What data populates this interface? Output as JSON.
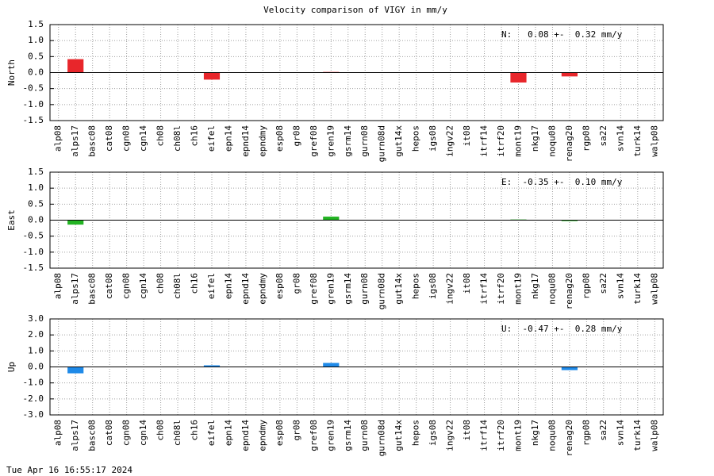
{
  "title": "Velocity comparison of VIGY in mm/y",
  "timestamp": "Tue Apr 16 16:55:17 2024",
  "chart_data": [
    {
      "type": "bar",
      "ylabel": "North",
      "annotation": "N:   0.08 +-  0.32 mm/y",
      "color": "#e8262b",
      "grid": true,
      "categories": [
        "alp08",
        "alps17",
        "basc08",
        "cat08",
        "cgn08",
        "cgn14",
        "ch08",
        "ch08l",
        "ch16",
        "eifel",
        "epn14",
        "epnd14",
        "epndmy",
        "esp08",
        "gr08",
        "gref08",
        "gren19",
        "gsrm14",
        "gurn08",
        "gurn08d",
        "gut14x",
        "hepos",
        "igs08",
        "ingv22",
        "it08",
        "itrf14",
        "itrf20",
        "mont19",
        "nkg17",
        "noqu08",
        "renag20",
        "rgp08",
        "sa22",
        "svn14",
        "turk14",
        "walp08"
      ],
      "values": [
        null,
        0.42,
        null,
        null,
        null,
        null,
        null,
        null,
        null,
        -0.22,
        null,
        null,
        null,
        null,
        null,
        null,
        0.02,
        null,
        null,
        null,
        null,
        null,
        null,
        null,
        null,
        null,
        null,
        -0.31,
        null,
        null,
        -0.12,
        null,
        null,
        null,
        null,
        null
      ],
      "ylim": [
        -1.5,
        1.5
      ],
      "yticks": [
        {
          "value": 1.5,
          "label": "1.5"
        },
        {
          "value": 1,
          "label": "1.0"
        },
        {
          "value": 0.5,
          "label": "0.5"
        },
        {
          "value": 0,
          "label": "0.0"
        },
        {
          "value": -0.5,
          "label": "-0.5"
        },
        {
          "value": -1,
          "label": "-1.0"
        },
        {
          "value": -1.5,
          "label": "-1.5"
        }
      ]
    },
    {
      "type": "bar",
      "ylabel": "East",
      "annotation": "E:  -0.35 +-  0.10 mm/y",
      "color": "#22b322",
      "grid": true,
      "categories": [
        "alp08",
        "alps17",
        "basc08",
        "cat08",
        "cgn08",
        "cgn14",
        "ch08",
        "ch08l",
        "ch16",
        "eifel",
        "epn14",
        "epnd14",
        "epndmy",
        "esp08",
        "gr08",
        "gref08",
        "gren19",
        "gsrm14",
        "gurn08",
        "gurn08d",
        "gut14x",
        "hepos",
        "igs08",
        "ingv22",
        "it08",
        "itrf14",
        "itrf20",
        "mont19",
        "nkg17",
        "noqu08",
        "renag20",
        "rgp08",
        "sa22",
        "svn14",
        "turk14",
        "walp08"
      ],
      "values": [
        null,
        -0.14,
        null,
        null,
        null,
        null,
        null,
        null,
        null,
        null,
        null,
        null,
        null,
        null,
        null,
        null,
        0.11,
        null,
        null,
        null,
        null,
        null,
        null,
        null,
        null,
        null,
        null,
        0.02,
        null,
        null,
        -0.03,
        null,
        null,
        null,
        null,
        null
      ],
      "ylim": [
        -1.5,
        1.5
      ],
      "yticks": [
        {
          "value": 1.5,
          "label": "1.5"
        },
        {
          "value": 1,
          "label": "1.0"
        },
        {
          "value": 0.5,
          "label": "0.5"
        },
        {
          "value": 0,
          "label": "0.0"
        },
        {
          "value": -0.5,
          "label": "-0.5"
        },
        {
          "value": -1,
          "label": "-1.0"
        },
        {
          "value": -1.5,
          "label": "-1.5"
        }
      ]
    },
    {
      "type": "bar",
      "ylabel": "Up",
      "annotation": "U:  -0.47 +-  0.28 mm/y",
      "color": "#1f8ae8",
      "grid": true,
      "categories": [
        "alp08",
        "alps17",
        "basc08",
        "cat08",
        "cgn08",
        "cgn14",
        "ch08",
        "ch08l",
        "ch16",
        "eifel",
        "epn14",
        "epnd14",
        "epndmy",
        "esp08",
        "gr08",
        "gref08",
        "gren19",
        "gsrm14",
        "gurn08",
        "gurn08d",
        "gut14x",
        "hepos",
        "igs08",
        "ingv22",
        "it08",
        "itrf14",
        "itrf20",
        "mont19",
        "nkg17",
        "noqu08",
        "renag20",
        "rgp08",
        "sa22",
        "svn14",
        "turk14",
        "walp08"
      ],
      "values": [
        null,
        -0.4,
        null,
        null,
        null,
        null,
        null,
        null,
        null,
        0.1,
        null,
        null,
        null,
        null,
        null,
        null,
        0.25,
        null,
        null,
        null,
        null,
        null,
        null,
        null,
        null,
        null,
        null,
        null,
        null,
        null,
        -0.2,
        null,
        null,
        null,
        null,
        null
      ],
      "ylim": [
        -3,
        3
      ],
      "yticks": [
        {
          "value": 3,
          "label": "3.0"
        },
        {
          "value": 2,
          "label": "2.0"
        },
        {
          "value": 1,
          "label": "1.0"
        },
        {
          "value": 0,
          "label": "0.0"
        },
        {
          "value": -1,
          "label": "-1.0"
        },
        {
          "value": -2,
          "label": "-2.0"
        },
        {
          "value": -3,
          "label": "-3.0"
        }
      ]
    }
  ]
}
